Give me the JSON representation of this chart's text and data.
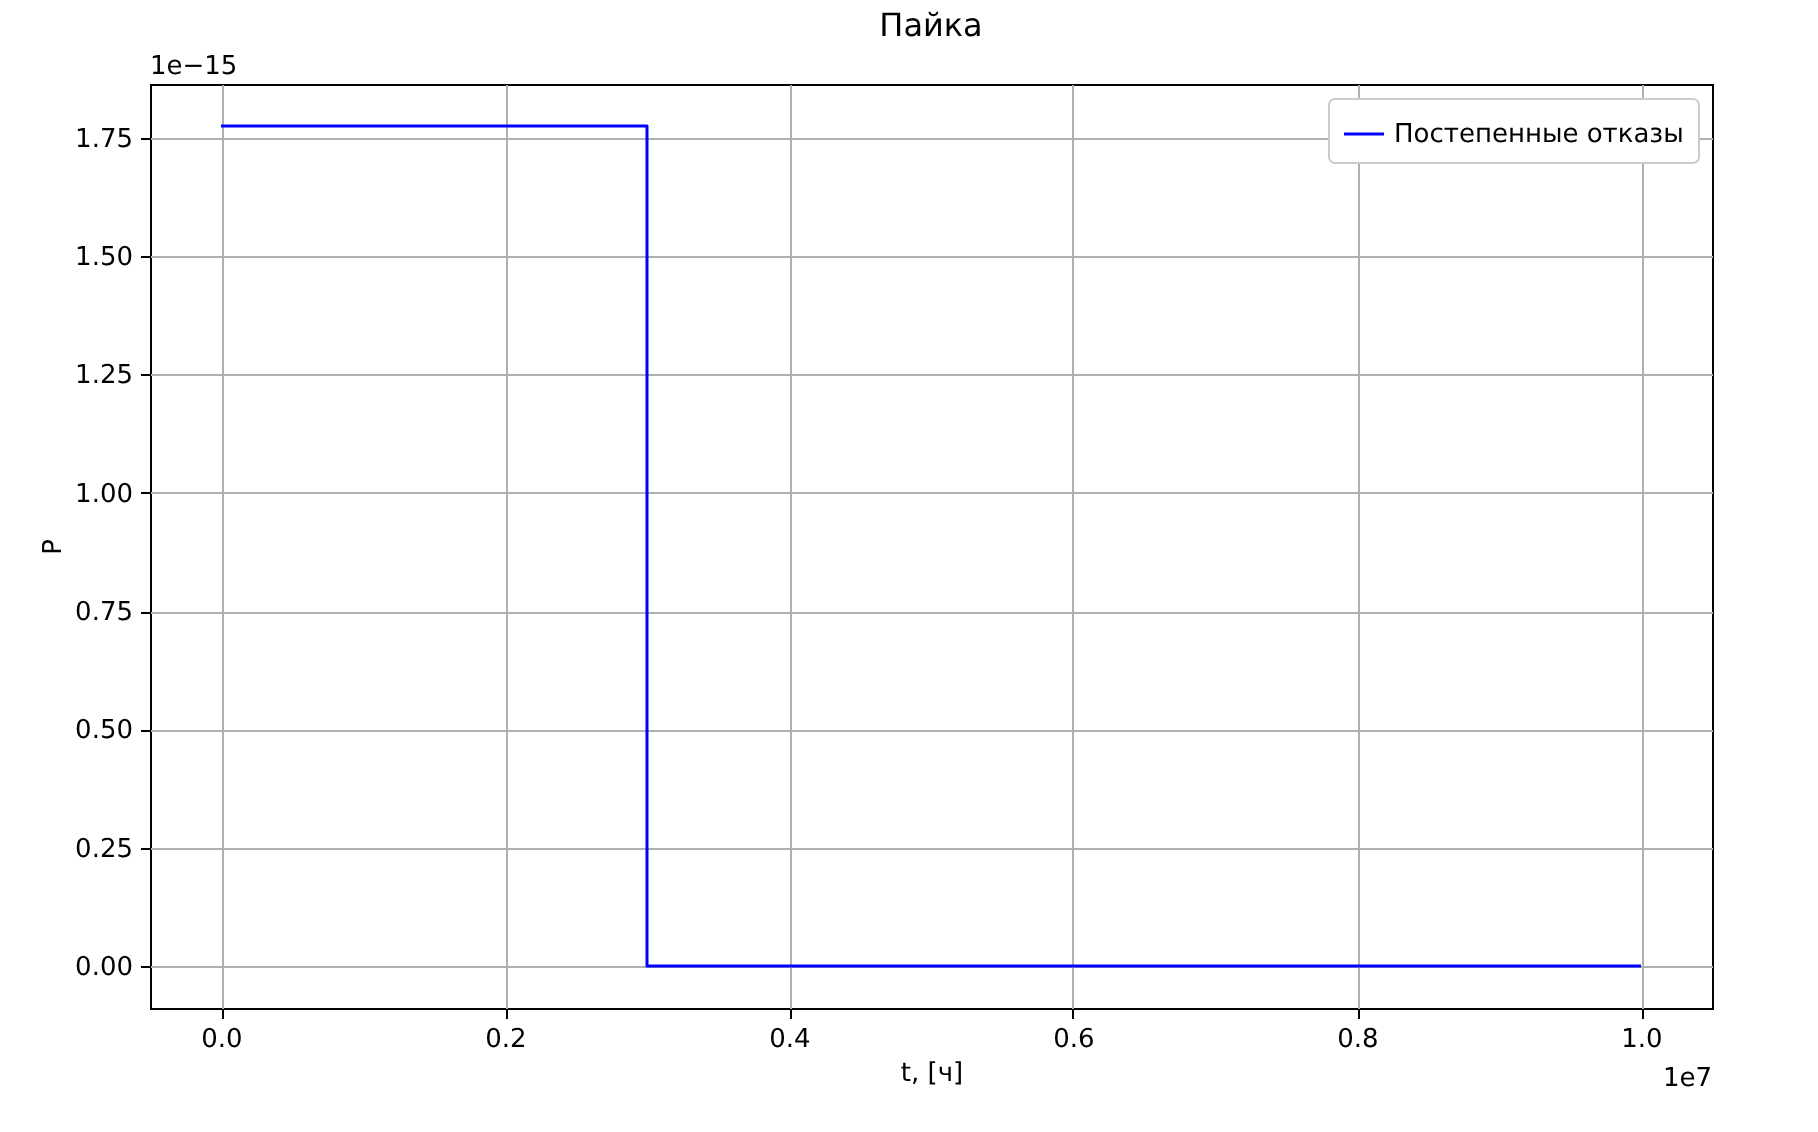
{
  "chart_data": {
    "type": "step",
    "title": "Пайка",
    "xlabel": "t, [ч]",
    "ylabel": "P",
    "x": [
      0,
      0.3,
      1.0
    ],
    "series": [
      {
        "name": "Постепенные отказы",
        "color": "#0000ff",
        "values": [
          1.775,
          0,
          0
        ]
      }
    ],
    "xlim": [
      -0.05,
      1.05
    ],
    "xticks": [
      {
        "value": 0,
        "label": "0.0"
      },
      {
        "value": 0.2,
        "label": "0.2"
      },
      {
        "value": 0.4,
        "label": "0.4"
      },
      {
        "value": 0.6,
        "label": "0.6"
      },
      {
        "value": 0.8,
        "label": "0.8"
      },
      {
        "value": 1,
        "label": "1.0"
      }
    ],
    "ylim": [
      -0.08875,
      1.86375
    ],
    "yticks": [
      {
        "value": 0,
        "label": "0.00"
      },
      {
        "value": 0.25,
        "label": "0.25"
      },
      {
        "value": 0.5,
        "label": "0.50"
      },
      {
        "value": 0.75,
        "label": "0.75"
      },
      {
        "value": 1,
        "label": "1.00"
      },
      {
        "value": 1.25,
        "label": "1.25"
      },
      {
        "value": 1.5,
        "label": "1.50"
      },
      {
        "value": 1.75,
        "label": "1.75"
      }
    ],
    "annotations": [
      "1e−15",
      "1e7"
    ],
    "grid": true,
    "legend": "top right"
  }
}
